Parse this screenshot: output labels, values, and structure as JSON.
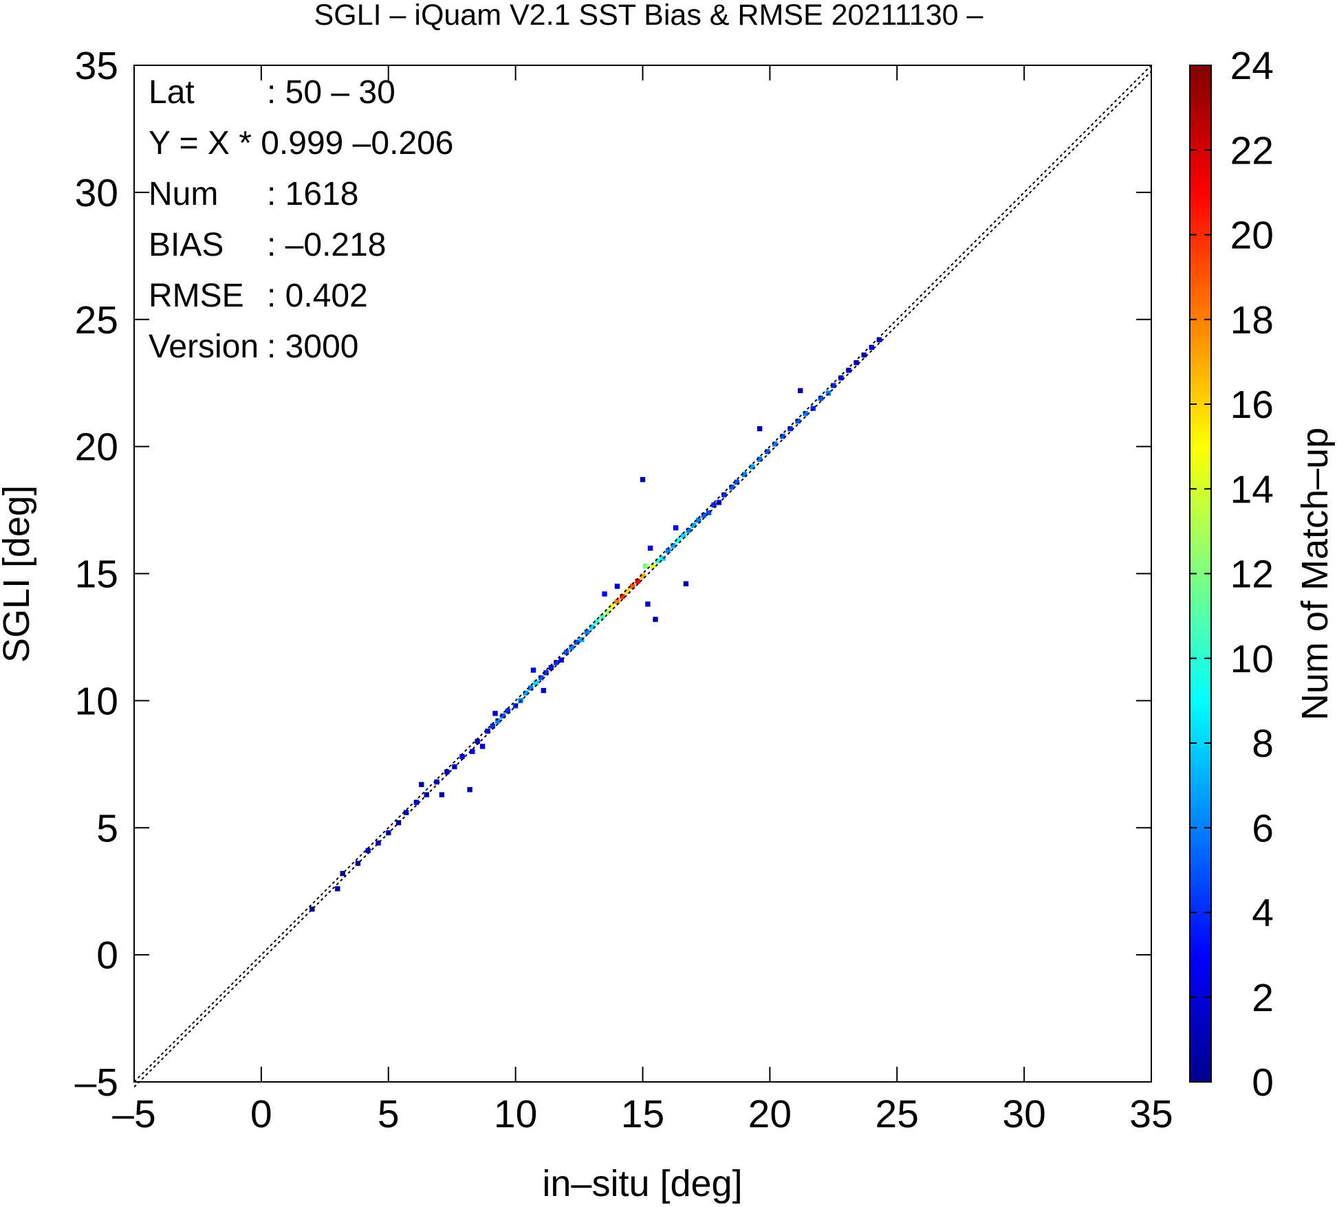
{
  "chart_data": {
    "type": "heatmap",
    "title": "SGLI – iQuam V2.1 SST Bias & RMSE 20211130 –",
    "xlabel": "in–situ [deg]",
    "ylabel": "SGLI [deg]",
    "xlim": [
      -5,
      35
    ],
    "ylim": [
      -5,
      35
    ],
    "xticks": [
      "–5",
      "0",
      "5",
      "10",
      "15",
      "20",
      "25",
      "30",
      "35"
    ],
    "yticks": [
      "–5",
      "0",
      "5",
      "10",
      "15",
      "20",
      "25",
      "30",
      "35"
    ],
    "grid": false,
    "reference_line": "Y = X",
    "regression": {
      "slope": 0.999,
      "intercept": -0.206
    },
    "stats": [
      {
        "label": "Lat",
        "value": ": 50 – 30"
      },
      {
        "label": "Y = X * 0.999 –0.206",
        "value": ""
      },
      {
        "label": "Num",
        "value": ": 1618"
      },
      {
        "label": "BIAS",
        "value": ": –0.218"
      },
      {
        "label": "RMSE",
        "value": ": 0.402"
      },
      {
        "label": "Version",
        "value": ": 3000"
      }
    ],
    "colorbar": {
      "label": "Num of Match–up",
      "range": [
        0,
        24
      ],
      "ticks": [
        "0",
        "2",
        "4",
        "6",
        "8",
        "10",
        "12",
        "14",
        "16",
        "18",
        "20",
        "22",
        "24"
      ],
      "colormap": "jet"
    },
    "cells": [
      [
        2.0,
        1.8,
        1
      ],
      [
        3.0,
        2.6,
        1
      ],
      [
        3.2,
        3.2,
        1
      ],
      [
        3.8,
        3.6,
        1
      ],
      [
        4.2,
        4.1,
        2
      ],
      [
        4.6,
        4.4,
        2
      ],
      [
        5.0,
        4.8,
        2
      ],
      [
        5.4,
        5.2,
        1
      ],
      [
        5.7,
        5.6,
        2
      ],
      [
        6.1,
        6.0,
        3
      ],
      [
        6.5,
        6.3,
        2
      ],
      [
        6.3,
        6.7,
        1
      ],
      [
        6.9,
        6.8,
        2
      ],
      [
        7.3,
        7.2,
        2
      ],
      [
        7.6,
        7.4,
        3
      ],
      [
        7.9,
        7.8,
        3
      ],
      [
        8.3,
        8.0,
        3
      ],
      [
        8.5,
        8.4,
        2
      ],
      [
        8.7,
        8.2,
        2
      ],
      [
        7.1,
        6.3,
        1
      ],
      [
        8.2,
        6.5,
        1
      ],
      [
        8.9,
        8.8,
        3
      ],
      [
        9.1,
        9.0,
        4
      ],
      [
        9.3,
        9.2,
        6
      ],
      [
        9.5,
        9.4,
        5
      ],
      [
        9.2,
        9.5,
        2
      ],
      [
        9.7,
        9.6,
        4
      ],
      [
        10.0,
        9.8,
        4
      ],
      [
        10.2,
        10.0,
        6
      ],
      [
        10.4,
        10.3,
        7
      ],
      [
        10.6,
        10.5,
        6
      ],
      [
        10.8,
        10.7,
        8
      ],
      [
        11.0,
        10.9,
        5
      ],
      [
        10.7,
        11.2,
        3
      ],
      [
        11.2,
        11.1,
        4
      ],
      [
        11.4,
        11.3,
        3
      ],
      [
        11.6,
        11.5,
        4
      ],
      [
        11.8,
        11.6,
        3
      ],
      [
        11.1,
        10.4,
        2
      ],
      [
        12.0,
        11.9,
        5
      ],
      [
        12.2,
        12.1,
        6
      ],
      [
        12.4,
        12.3,
        5
      ],
      [
        12.6,
        12.4,
        7
      ],
      [
        12.8,
        12.7,
        6
      ],
      [
        13.0,
        12.9,
        8
      ],
      [
        13.2,
        13.1,
        10
      ],
      [
        13.4,
        13.3,
        11
      ],
      [
        13.6,
        13.5,
        13
      ],
      [
        13.8,
        13.7,
        15
      ],
      [
        14.0,
        13.9,
        18
      ],
      [
        14.2,
        14.1,
        20
      ],
      [
        14.4,
        14.3,
        16
      ],
      [
        14.6,
        14.5,
        19
      ],
      [
        14.8,
        14.7,
        21
      ],
      [
        15.0,
        14.9,
        17
      ],
      [
        13.5,
        14.2,
        3
      ],
      [
        14.0,
        14.5,
        2
      ],
      [
        15.2,
        13.8,
        2
      ],
      [
        15.5,
        13.2,
        1
      ],
      [
        15.1,
        15.3,
        12
      ],
      [
        15.4,
        15.3,
        14
      ],
      [
        15.6,
        15.5,
        10
      ],
      [
        15.3,
        16.0,
        3
      ],
      [
        15.8,
        15.6,
        8
      ],
      [
        16.0,
        15.9,
        6
      ],
      [
        16.2,
        16.1,
        7
      ],
      [
        16.4,
        16.3,
        9
      ],
      [
        16.6,
        16.5,
        8
      ],
      [
        16.3,
        16.8,
        3
      ],
      [
        16.8,
        16.7,
        6
      ],
      [
        17.0,
        16.9,
        7
      ],
      [
        17.2,
        17.1,
        6
      ],
      [
        17.4,
        17.3,
        5
      ],
      [
        17.6,
        17.4,
        5
      ],
      [
        17.8,
        17.7,
        4
      ],
      [
        18.0,
        17.8,
        3
      ],
      [
        15.0,
        18.7,
        1
      ],
      [
        16.7,
        14.6,
        1
      ],
      [
        18.2,
        18.1,
        4
      ],
      [
        18.5,
        18.4,
        5
      ],
      [
        18.7,
        18.6,
        5
      ],
      [
        19.0,
        18.9,
        6
      ],
      [
        19.3,
        19.2,
        7
      ],
      [
        19.6,
        19.5,
        6
      ],
      [
        19.9,
        19.8,
        5
      ],
      [
        20.2,
        20.1,
        6
      ],
      [
        20.5,
        20.4,
        5
      ],
      [
        19.6,
        20.7,
        1
      ],
      [
        20.8,
        20.7,
        4
      ],
      [
        21.1,
        21.0,
        5
      ],
      [
        21.4,
        21.3,
        6
      ],
      [
        21.7,
        21.5,
        4
      ],
      [
        21.2,
        22.2,
        1
      ],
      [
        22.0,
        21.9,
        5
      ],
      [
        22.3,
        22.1,
        6
      ],
      [
        22.5,
        22.4,
        4
      ],
      [
        22.8,
        22.7,
        3
      ],
      [
        23.1,
        23.0,
        3
      ],
      [
        23.4,
        23.3,
        2
      ],
      [
        23.7,
        23.6,
        2
      ],
      [
        24.0,
        23.9,
        3
      ],
      [
        24.3,
        24.2,
        2
      ]
    ]
  }
}
